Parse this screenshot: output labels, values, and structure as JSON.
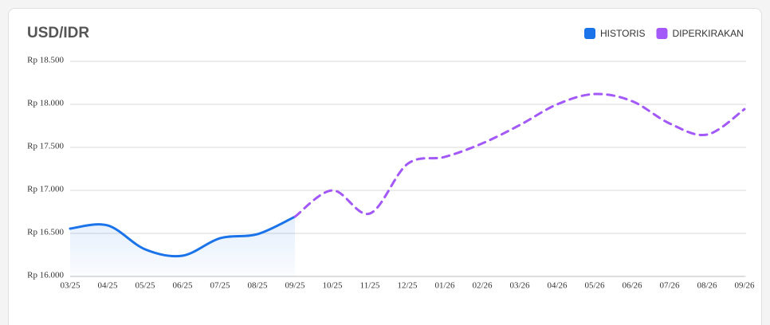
{
  "chart_data": {
    "type": "line",
    "title": "USD/IDR",
    "categories": [
      "03/25",
      "04/25",
      "05/25",
      "06/25",
      "07/25",
      "08/25",
      "09/25",
      "10/25",
      "11/25",
      "12/25",
      "01/26",
      "02/26",
      "03/26",
      "04/26",
      "05/26",
      "06/26",
      "07/26",
      "08/26",
      "09/26"
    ],
    "series": [
      {
        "name": "HISTORIS",
        "color": "#1a73e8",
        "values": [
          16556,
          16593,
          16315,
          16241,
          16444,
          16491,
          16694,
          null,
          null,
          null,
          null,
          null,
          null,
          null,
          null,
          null,
          null,
          null,
          null
        ]
      },
      {
        "name": "DIPERKIRAKAN",
        "color": "#a259f7",
        "values": [
          null,
          null,
          null,
          null,
          null,
          null,
          16694,
          17000,
          16731,
          17306,
          17389,
          17546,
          17759,
          18000,
          18120,
          18037,
          17778,
          17648,
          17944
        ]
      }
    ],
    "ylim": [
      16000,
      18500
    ],
    "yticks": [
      {
        "value": 16000,
        "label": "Rp 16.000"
      },
      {
        "value": 16500,
        "label": "Rp 16.500"
      },
      {
        "value": 17000,
        "label": "Rp 17.000"
      },
      {
        "value": 17500,
        "label": "Rp 17.500"
      },
      {
        "value": 18000,
        "label": "Rp 18.000"
      },
      {
        "value": 18500,
        "label": "Rp 18.500"
      }
    ],
    "grid": true,
    "legend": "top-right"
  }
}
